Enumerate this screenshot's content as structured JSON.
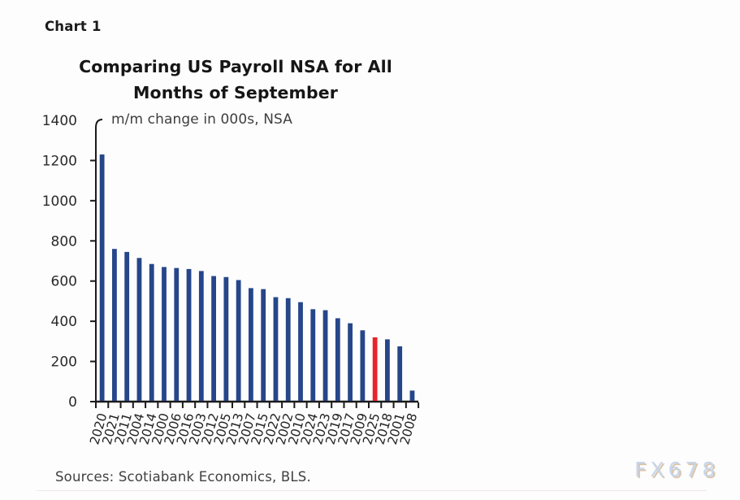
{
  "page": {
    "figure_label": "Chart 1",
    "source_note": "Sources: Scotiabank Economics, BLS.",
    "watermark": "FX678",
    "background_color": "#fdfdfd"
  },
  "chart_data": {
    "type": "bar",
    "title": "Comparing US Payroll NSA for All Months of September",
    "title_lines": [
      "Comparing US Payroll NSA for All",
      "Months of September"
    ],
    "subtitle": "m/m change in 000s, NSA",
    "xlabel": "",
    "ylabel": "",
    "categories": [
      "2020",
      "2021",
      "2011",
      "2004",
      "2014",
      "2000",
      "2006",
      "2016",
      "2003",
      "2012",
      "2005",
      "2013",
      "2007",
      "2015",
      "2022",
      "2002",
      "2010",
      "2024",
      "2023",
      "2019",
      "2017",
      "2009",
      "2025",
      "2018",
      "2001",
      "2008"
    ],
    "values": [
      1230,
      760,
      745,
      715,
      685,
      670,
      665,
      660,
      650,
      625,
      620,
      605,
      565,
      560,
      520,
      515,
      495,
      460,
      455,
      415,
      390,
      355,
      320,
      310,
      275,
      55
    ],
    "highlight_category": "2025",
    "bar_color": "#26468a",
    "highlight_color": "#e9232b",
    "axis_color": "#1b1b1b",
    "label_color": "#242424",
    "ylim": [
      0,
      1400
    ],
    "ytick_step": 200,
    "yticks": [
      0,
      200,
      400,
      600,
      800,
      1000,
      1200,
      1400
    ],
    "grid": false,
    "legend": false,
    "x_label_rotation_deg": -74
  }
}
